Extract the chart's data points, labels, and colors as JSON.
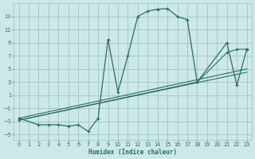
{
  "xlabel": "Humidex (Indice chaleur)",
  "bg_color": "#cde8e8",
  "grid_color": "#9fc4c4",
  "line_color": "#2a6e60",
  "xlim_min": -0.5,
  "xlim_max": 23.5,
  "ylim_min": -5.8,
  "ylim_max": 15.0,
  "xticks": [
    0,
    1,
    2,
    3,
    4,
    5,
    6,
    7,
    8,
    9,
    10,
    11,
    12,
    13,
    14,
    15,
    16,
    17,
    18,
    19,
    20,
    21,
    22,
    23
  ],
  "yticks": [
    -5,
    -3,
    -1,
    1,
    3,
    5,
    7,
    9,
    11,
    13
  ],
  "main_x": [
    0,
    2,
    3,
    4,
    5,
    6,
    7,
    8,
    9,
    10,
    11,
    12,
    13,
    14,
    15,
    16,
    17,
    18,
    21,
    22,
    23
  ],
  "main_y": [
    -2.5,
    -3.5,
    -3.5,
    -3.5,
    -3.7,
    -3.5,
    -4.5,
    -2.5,
    9.5,
    1.5,
    7.0,
    13.0,
    13.8,
    14.1,
    14.2,
    13.0,
    12.5,
    3.0,
    9.0,
    2.5,
    8.0
  ],
  "line1_x": [
    0,
    23
  ],
  "line1_y": [
    -2.5,
    5.0
  ],
  "line2_x": [
    0,
    23
  ],
  "line2_y": [
    -2.8,
    4.5
  ],
  "line3_x": [
    0,
    18,
    21,
    22,
    23
  ],
  "line3_y": [
    -2.8,
    3.0,
    7.5,
    8.0,
    8.0
  ]
}
